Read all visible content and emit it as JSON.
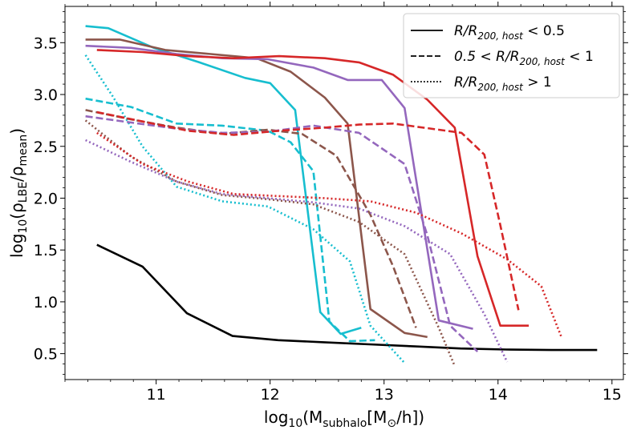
{
  "chart_data": {
    "type": "line",
    "xlabel": "log10(Msubhalo[M⊙/h])",
    "xlabel_parts": {
      "pre": "log",
      "sub1": "10",
      "mid": "(M",
      "sub2": "subhalo",
      "mid2": "[M",
      "sub3": "⊙",
      "post": "/h])"
    },
    "ylabel": "log10(ρLBE/ρmean)",
    "ylabel_parts": {
      "pre": "log",
      "sub1": "10",
      "mid": "(ρ",
      "sub2": "LBE",
      "mid2": "/ρ",
      "sub3": "mean",
      "post": ")"
    },
    "xlim": [
      10.2,
      15.1
    ],
    "ylim": [
      0.25,
      3.85
    ],
    "xticks": [
      11,
      12,
      13,
      14,
      15
    ],
    "yticks": [
      0.5,
      1.0,
      1.5,
      2.0,
      2.5,
      3.0,
      3.5
    ],
    "xtick_labels": [
      "11",
      "12",
      "13",
      "14",
      "15"
    ],
    "ytick_labels": [
      "0.5",
      "1.0",
      "1.5",
      "2.0",
      "2.5",
      "3.0",
      "3.5"
    ],
    "legend": {
      "position": "top-right",
      "entries": [
        {
          "style": "solid",
          "label": "R/R200, host < 0.5",
          "parts": {
            "a": "R/R",
            "sub": "200, host",
            "b": " < 0.5"
          }
        },
        {
          "style": "dashed",
          "label": "0.5 < R/R200, host < 1",
          "parts": {
            "a": "0.5 < R/R",
            "sub": "200, host",
            "b": " < 1"
          }
        },
        {
          "style": "dotted",
          "label": "R/R200, host > 1",
          "parts": {
            "a": "R/R",
            "sub": "200, host",
            "b": " > 1"
          }
        }
      ]
    },
    "series": [
      {
        "name": "black-solid",
        "color": "#000000",
        "style": "solid",
        "x": [
          10.48,
          10.88,
          11.27,
          11.67,
          12.07,
          12.47,
          12.87,
          13.27,
          13.67,
          14.07,
          14.47,
          14.87
        ],
        "y": [
          1.55,
          1.34,
          0.89,
          0.67,
          0.63,
          0.61,
          0.59,
          0.57,
          0.55,
          0.54,
          0.535,
          0.535
        ]
      },
      {
        "name": "cyan-solid",
        "color": "#17becf",
        "style": "solid",
        "x": [
          10.38,
          10.58,
          10.98,
          11.38,
          11.78,
          12.0,
          12.22,
          12.44,
          12.62,
          12.8
        ],
        "y": [
          3.66,
          3.64,
          3.45,
          3.31,
          3.16,
          3.11,
          2.85,
          0.9,
          0.69,
          0.75
        ]
      },
      {
        "name": "cyan-dashed",
        "color": "#17becf",
        "style": "dashed",
        "x": [
          10.38,
          10.78,
          11.18,
          11.58,
          11.98,
          12.18,
          12.38,
          12.52,
          12.7,
          12.92
        ],
        "y": [
          2.96,
          2.88,
          2.72,
          2.7,
          2.65,
          2.54,
          2.26,
          0.81,
          0.62,
          0.63
        ]
      },
      {
        "name": "cyan-dotted",
        "color": "#17becf",
        "style": "dotted",
        "x": [
          10.38,
          10.62,
          10.88,
          11.18,
          11.58,
          11.98,
          12.38,
          12.7,
          12.88,
          13.18
        ],
        "y": [
          3.38,
          2.98,
          2.5,
          2.11,
          1.97,
          1.92,
          1.7,
          1.39,
          0.77,
          0.41
        ]
      },
      {
        "name": "brown-solid",
        "color": "#8c564b",
        "style": "solid",
        "x": [
          10.38,
          10.68,
          11.08,
          11.48,
          11.88,
          12.18,
          12.48,
          12.68,
          12.88,
          13.18,
          13.38
        ],
        "y": [
          3.53,
          3.53,
          3.43,
          3.39,
          3.35,
          3.22,
          2.97,
          2.72,
          0.93,
          0.7,
          0.66
        ]
      },
      {
        "name": "brown-dashed",
        "color": "#8c564b",
        "style": "dashed",
        "x": [
          10.38,
          10.78,
          11.18,
          11.58,
          11.98,
          12.28,
          12.58,
          12.88,
          13.08,
          13.28
        ],
        "y": [
          2.85,
          2.76,
          2.68,
          2.62,
          2.66,
          2.62,
          2.41,
          1.84,
          1.34,
          0.75
        ]
      },
      {
        "name": "brown-dotted",
        "color": "#8c564b",
        "style": "dotted",
        "x": [
          10.38,
          10.78,
          11.18,
          11.58,
          11.98,
          12.38,
          12.78,
          13.18,
          13.48,
          13.62
        ],
        "y": [
          2.75,
          2.4,
          2.16,
          2.03,
          1.99,
          1.94,
          1.77,
          1.46,
          0.75,
          0.38
        ]
      },
      {
        "name": "purple-solid",
        "color": "#9467bd",
        "style": "solid",
        "x": [
          10.38,
          10.78,
          11.18,
          11.58,
          11.98,
          12.38,
          12.68,
          12.98,
          13.18,
          13.48,
          13.78
        ],
        "y": [
          3.47,
          3.45,
          3.39,
          3.35,
          3.34,
          3.26,
          3.14,
          3.14,
          2.87,
          0.82,
          0.74
        ]
      },
      {
        "name": "purple-dashed",
        "color": "#9467bd",
        "style": "dashed",
        "x": [
          10.38,
          10.78,
          11.18,
          11.58,
          11.98,
          12.38,
          12.78,
          13.18,
          13.38,
          13.58,
          13.82
        ],
        "y": [
          2.79,
          2.73,
          2.67,
          2.63,
          2.64,
          2.7,
          2.63,
          2.33,
          1.64,
          0.77,
          0.52
        ]
      },
      {
        "name": "purple-dotted",
        "color": "#9467bd",
        "style": "dotted",
        "x": [
          10.38,
          10.78,
          11.18,
          11.58,
          11.98,
          12.38,
          12.78,
          13.18,
          13.58,
          13.88,
          14.08
        ],
        "y": [
          2.56,
          2.35,
          2.16,
          2.04,
          2.0,
          1.96,
          1.9,
          1.73,
          1.46,
          0.88,
          0.42
        ]
      },
      {
        "name": "red-solid",
        "color": "#d62728",
        "style": "solid",
        "x": [
          10.48,
          10.88,
          11.28,
          11.68,
          12.08,
          12.48,
          12.78,
          13.08,
          13.38,
          13.62,
          13.82,
          14.02,
          14.27
        ],
        "y": [
          3.43,
          3.41,
          3.37,
          3.35,
          3.37,
          3.35,
          3.31,
          3.19,
          2.95,
          2.68,
          1.44,
          0.77,
          0.77
        ]
      },
      {
        "name": "red-dashed",
        "color": "#d62728",
        "style": "dashed",
        "x": [
          10.48,
          10.88,
          11.28,
          11.68,
          12.08,
          12.48,
          12.78,
          13.08,
          13.48,
          13.68,
          13.88,
          14.02,
          14.18
        ],
        "y": [
          2.83,
          2.74,
          2.65,
          2.61,
          2.65,
          2.68,
          2.71,
          2.72,
          2.66,
          2.63,
          2.42,
          1.74,
          0.92
        ]
      },
      {
        "name": "red-dotted",
        "color": "#d62728",
        "style": "dotted",
        "x": [
          10.48,
          10.88,
          11.28,
          11.68,
          12.08,
          12.48,
          12.88,
          13.28,
          13.68,
          14.08,
          14.38,
          14.56
        ],
        "y": [
          2.63,
          2.33,
          2.16,
          2.04,
          2.02,
          2.0,
          1.97,
          1.86,
          1.66,
          1.41,
          1.15,
          0.65
        ]
      }
    ]
  }
}
